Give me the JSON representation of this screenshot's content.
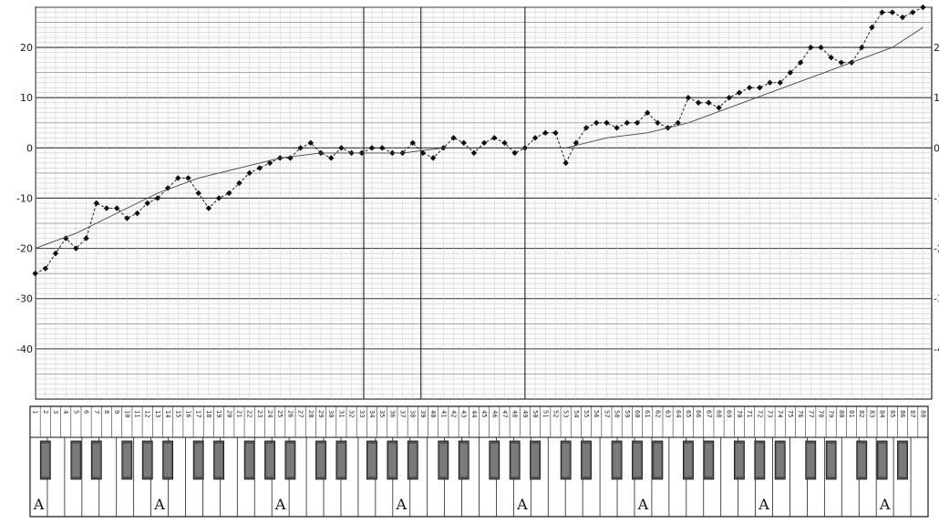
{
  "chart_data": {
    "type": "line",
    "title": "",
    "xlabel": "",
    "ylabel": "",
    "xlim": [
      1,
      88
    ],
    "ylim": [
      -50,
      28
    ],
    "grid": true,
    "y_ticks": [
      "20",
      "10",
      "0",
      "-10",
      "-20",
      "-30",
      "-40"
    ],
    "y_ticks_right_partial": [
      "2",
      "1",
      "0",
      "-1",
      "-2",
      "-3",
      "-4"
    ],
    "x_tick_labels": [
      "1",
      "2",
      "3",
      "4",
      "5",
      "6",
      "7",
      "8",
      "9",
      "10",
      "11",
      "12",
      "13",
      "14",
      "15",
      "16",
      "17",
      "18",
      "19",
      "20",
      "21",
      "22",
      "23",
      "24",
      "25",
      "26",
      "27",
      "28",
      "29",
      "30",
      "31",
      "32",
      "33",
      "34",
      "35",
      "36",
      "37",
      "38",
      "39",
      "40",
      "41",
      "42",
      "43",
      "44",
      "45",
      "46",
      "47",
      "48",
      "49",
      "50",
      "51",
      "52",
      "53",
      "54",
      "55",
      "56",
      "57",
      "58",
      "59",
      "60",
      "61",
      "62",
      "63",
      "64",
      "65",
      "66",
      "67",
      "68",
      "69",
      "70",
      "71",
      "72",
      "73",
      "74",
      "75",
      "76",
      "77",
      "78",
      "79",
      "80",
      "81",
      "82",
      "83",
      "84",
      "85",
      "86",
      "87",
      "88"
    ],
    "octave_labels": [
      "A",
      "A",
      "A",
      "A",
      "A",
      "A",
      "A",
      "A"
    ],
    "series": [
      {
        "marker": "diamond",
        "x": [
          1,
          2,
          3,
          4,
          5,
          6,
          7,
          8,
          9,
          10,
          11,
          12,
          13,
          14,
          15,
          16,
          17,
          18,
          19,
          20,
          21,
          22,
          23,
          24,
          25,
          26,
          27,
          28,
          29,
          30,
          31,
          32,
          33,
          34,
          35,
          36,
          37,
          38,
          39,
          40,
          41,
          42,
          43,
          44,
          45,
          46,
          47,
          48,
          49,
          50,
          51,
          52,
          53,
          54,
          55,
          56,
          57,
          58,
          59,
          60,
          61,
          62,
          63,
          64,
          65,
          66,
          67,
          68,
          69,
          70,
          71,
          72,
          73,
          74,
          75,
          76,
          77,
          78,
          79,
          80,
          81,
          82,
          83,
          84,
          85,
          86,
          87,
          88
        ],
        "y": [
          -25,
          -24,
          -21,
          -18,
          -20,
          -18,
          -11,
          -12,
          -12,
          -14,
          -13,
          -11,
          -10,
          -8,
          -6,
          -6,
          -9,
          -12,
          -10,
          -9,
          -7,
          -5,
          -4,
          -3,
          -2,
          -2,
          0,
          1,
          -1,
          -2,
          0,
          -1,
          -1,
          0,
          0,
          -1,
          -1,
          1,
          -1,
          -2,
          0,
          2,
          1,
          -1,
          1,
          2,
          1,
          -1,
          0,
          2,
          3,
          3,
          -3,
          1,
          4,
          5,
          5,
          4,
          5,
          5,
          7,
          5,
          4,
          5,
          10,
          9,
          9,
          8,
          10,
          11,
          12,
          12,
          13,
          13,
          15,
          17,
          20,
          20,
          18,
          17,
          17,
          20,
          24,
          27,
          27,
          26,
          27,
          28
        ]
      },
      {
        "marker": "none",
        "x": [
          1,
          5,
          9,
          13,
          17,
          21,
          25,
          29,
          33,
          37,
          41,
          45,
          49,
          53,
          57,
          61,
          65,
          69,
          73,
          77,
          81,
          85,
          88
        ],
        "y": [
          -20,
          -17,
          -13,
          -9,
          -6,
          -4,
          -2,
          -1,
          -1,
          -1,
          0,
          0,
          0,
          0,
          2,
          3,
          5,
          8,
          11,
          14,
          17,
          20,
          24
        ]
      }
    ]
  }
}
